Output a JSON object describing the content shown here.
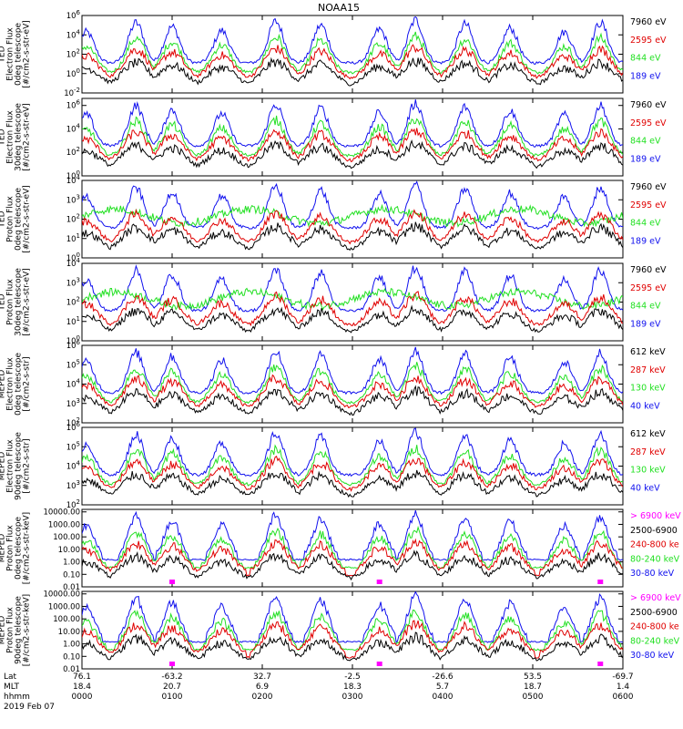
{
  "title": "NOAA15",
  "colors": {
    "black": "#000000",
    "red": "#e00000",
    "green": "#22e022",
    "blue": "#1010ee",
    "magenta": "#ff00ff"
  },
  "panels": [
    {
      "ylabel": [
        "TED",
        "Electron Flux",
        "0deg telescope",
        "[#/cm2-s-str-eV]"
      ],
      "ytick_labels": [
        "10^6",
        "10^4",
        "10^2",
        "10^0",
        "10^-2"
      ],
      "ytick_exp": [
        6,
        4,
        2,
        0,
        -2
      ],
      "ylim_exp": [
        -2,
        6
      ],
      "log": true,
      "legend": [
        {
          "label": "7960 eV",
          "color": "#000000"
        },
        {
          "label": "2595 eV",
          "color": "#e00000"
        },
        {
          "label": "844 eV",
          "color": "#22e022"
        },
        {
          "label": "189 eV",
          "color": "#1010ee"
        }
      ]
    },
    {
      "ylabel": [
        "TED",
        "Electron Flux",
        "30deg telescope",
        "[#/cm2-s-str-eV]"
      ],
      "ytick_labels": [
        "10^6",
        "10^4",
        "10^2",
        "10^0"
      ],
      "ytick_exp": [
        6,
        4,
        2,
        0
      ],
      "ylim_exp": [
        0,
        6.6
      ],
      "log": true,
      "legend": [
        {
          "label": "7960 eV",
          "color": "#000000"
        },
        {
          "label": "2595 eV",
          "color": "#e00000"
        },
        {
          "label": "844 eV",
          "color": "#22e022"
        },
        {
          "label": "189 eV",
          "color": "#1010ee"
        }
      ]
    },
    {
      "ylabel": [
        "TED",
        "Proton Flux",
        "0deg telescope",
        "[#/cm2-s-str-eV]"
      ],
      "ytick_labels": [
        "10^4",
        "10^3",
        "10^2",
        "10^1",
        "10^0"
      ],
      "ytick_exp": [
        4,
        3,
        2,
        1,
        0
      ],
      "ylim_exp": [
        0,
        4
      ],
      "log": true,
      "legend": [
        {
          "label": "7960 eV",
          "color": "#000000"
        },
        {
          "label": "2595 eV",
          "color": "#e00000"
        },
        {
          "label": "844 eV",
          "color": "#22e022"
        },
        {
          "label": "189 eV",
          "color": "#1010ee"
        }
      ]
    },
    {
      "ylabel": [
        "TED",
        "Proton Flux",
        "30deg telescope",
        "[#/cm2-s-str-eV]"
      ],
      "ytick_labels": [
        "10^4",
        "10^3",
        "10^2",
        "10^1",
        "10^0"
      ],
      "ytick_exp": [
        4,
        3,
        2,
        1,
        0
      ],
      "ylim_exp": [
        0,
        4
      ],
      "log": true,
      "legend": [
        {
          "label": "7960 eV",
          "color": "#000000"
        },
        {
          "label": "2595 eV",
          "color": "#e00000"
        },
        {
          "label": "844 eV",
          "color": "#22e022"
        },
        {
          "label": "189 eV",
          "color": "#1010ee"
        }
      ]
    },
    {
      "ylabel": [
        "MEPED",
        "Electron Flux",
        "0deg telescope",
        "[#/cm2-s-str]"
      ],
      "ytick_labels": [
        "10^6",
        "10^5",
        "10^4",
        "10^3",
        "10^2"
      ],
      "ytick_exp": [
        6,
        5,
        4,
        3,
        2
      ],
      "ylim_exp": [
        2,
        6
      ],
      "log": true,
      "legend": [
        {
          "label": "612 keV",
          "color": "#000000"
        },
        {
          "label": "287 keV",
          "color": "#e00000"
        },
        {
          "label": "130 keV",
          "color": "#22e022"
        },
        {
          "label": "40 keV",
          "color": "#1010ee"
        }
      ]
    },
    {
      "ylabel": [
        "MEPED",
        "Electron Flux",
        "90deg telescope",
        "[#/cm2-s-str]"
      ],
      "ytick_labels": [
        "10^6",
        "10^5",
        "10^4",
        "10^3",
        "10^2"
      ],
      "ytick_exp": [
        6,
        5,
        4,
        3,
        2
      ],
      "ylim_exp": [
        2,
        6
      ],
      "log": true,
      "legend": [
        {
          "label": "612 keV",
          "color": "#000000"
        },
        {
          "label": "287 keV",
          "color": "#e00000"
        },
        {
          "label": "130 keV",
          "color": "#22e022"
        },
        {
          "label": "40 keV",
          "color": "#1010ee"
        }
      ]
    },
    {
      "ylabel": [
        "MEPED",
        "Proton Flux",
        "0deg telescope",
        "[#/cm2-s-str-keV]"
      ],
      "ytick_labels": [
        "10000.00",
        "1000.00",
        "100.00",
        "10.00",
        "1.00",
        "0.10",
        "0.01"
      ],
      "ytick_exp": [
        4,
        3,
        2,
        1,
        0,
        -1,
        -2
      ],
      "ylim_exp": [
        -2,
        4.2
      ],
      "log": true,
      "legend": [
        {
          "label": "> 6900 keV",
          "color": "#ff00ff"
        },
        {
          "label": "2500-6900",
          "color": "#000000"
        },
        {
          "label": "240-800 ke",
          "color": "#e00000"
        },
        {
          "label": "80-240 keV",
          "color": "#22e022"
        },
        {
          "label": "30-80 keV",
          "color": "#1010ee"
        }
      ]
    },
    {
      "ylabel": [
        "MEPED",
        "Proton Flux",
        "90deg telescope",
        "[#/cm2-s-str-keV]"
      ],
      "ytick_labels": [
        "10000.00",
        "1000.00",
        "100.00",
        "10.00",
        "1.00",
        "0.10",
        "0.01"
      ],
      "ytick_exp": [
        4,
        3,
        2,
        1,
        0,
        -1,
        -2
      ],
      "ylim_exp": [
        -2,
        4.2
      ],
      "log": true,
      "legend": [
        {
          "label": "> 6900 keV",
          "color": "#ff00ff"
        },
        {
          "label": "2500-6900",
          "color": "#000000"
        },
        {
          "label": "240-800 ke",
          "color": "#e00000"
        },
        {
          "label": "80-240 keV",
          "color": "#22e022"
        },
        {
          "label": "30-80 keV",
          "color": "#1010ee"
        }
      ]
    }
  ],
  "xaxis": {
    "row_labels": [
      "Lat",
      "MLT",
      "hhmm"
    ],
    "lat": [
      "76.1",
      "-63.2",
      "32.7",
      "-2.5",
      "-26.6",
      "53.5",
      "-69.7"
    ],
    "mlt": [
      "18.4",
      "20.7",
      "6.9",
      "18.3",
      "5.7",
      "18.7",
      "1.4"
    ],
    "hhmm": [
      "0000",
      "0100",
      "0200",
      "0300",
      "0400",
      "0500",
      "0600"
    ],
    "date": "2019 Feb 07"
  },
  "chart_data": {
    "type": "line",
    "title": "NOAA15",
    "x_label_rows": [
      "Lat",
      "MLT",
      "hhmm"
    ],
    "x_ticks_hhmm": [
      "0000",
      "0100",
      "0200",
      "0300",
      "0400",
      "0500",
      "0600"
    ],
    "x_ticks_lat": [
      "76.1",
      "-63.2",
      "32.7",
      "-2.5",
      "-26.6",
      "53.5",
      "-69.7"
    ],
    "x_ticks_mlt": [
      "18.4",
      "20.7",
      "6.9",
      "18.3",
      "5.7",
      "18.7",
      "1.4"
    ],
    "date": "2019 Feb 07",
    "x_range_hours": [
      0,
      6
    ],
    "y_scale": "log",
    "peak_times_hours": [
      0.05,
      0.6,
      1.0,
      1.55,
      2.15,
      2.65,
      3.3,
      3.7,
      4.25,
      4.75,
      5.35,
      5.75
    ],
    "note_series_shape": "spiky flux time series with repeated radiation-belt peaks"
  }
}
